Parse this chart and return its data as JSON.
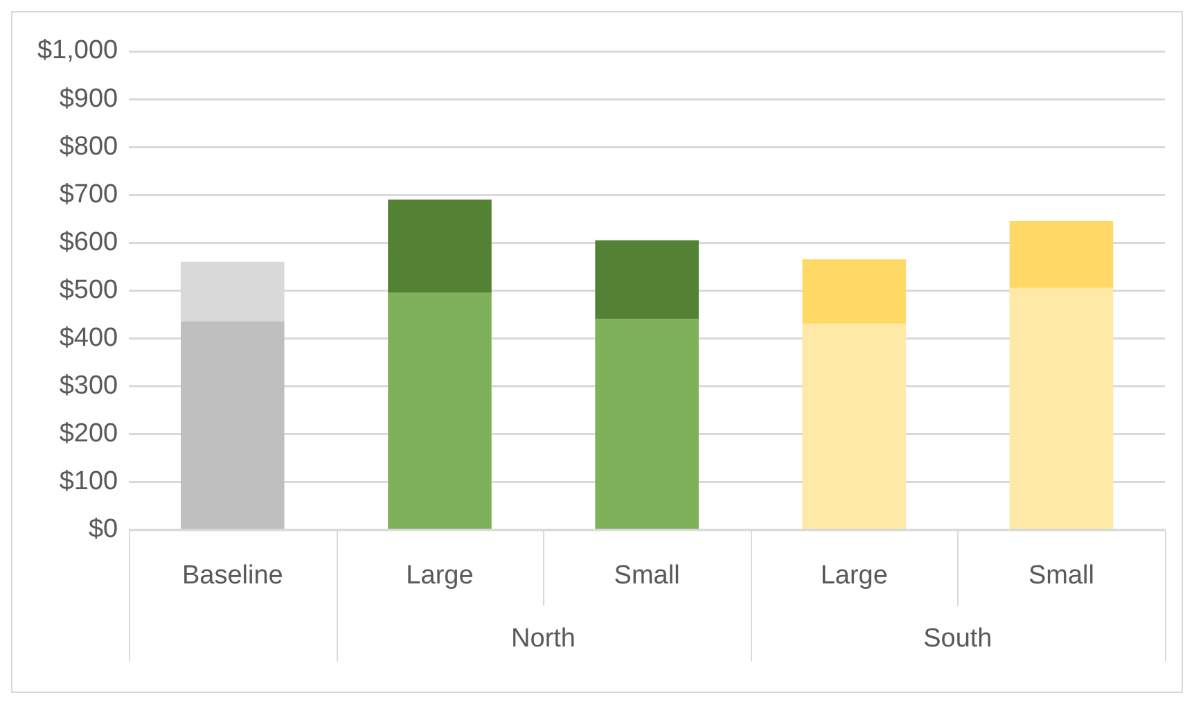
{
  "chart_data": {
    "type": "bar",
    "stacked": true,
    "categories": [
      "Baseline",
      "Large",
      "Small",
      "Large",
      "Small"
    ],
    "series": [
      {
        "colors": [
          "#bfbfbf",
          "#7fb05a",
          "#7fb05a",
          "#ffe9a6",
          "#ffe9a6"
        ],
        "values": [
          435,
          495,
          440,
          430,
          505
        ]
      },
      {
        "colors": [
          "#d9d9d9",
          "#548235",
          "#548235",
          "#ffd966",
          "#ffd966"
        ],
        "values": [
          125,
          195,
          165,
          135,
          140
        ]
      }
    ],
    "ylim": [
      0,
      1000
    ],
    "yticks": [
      {
        "value": 0,
        "label": "$0"
      },
      {
        "value": 100,
        "label": "$100"
      },
      {
        "value": 200,
        "label": "$200"
      },
      {
        "value": 300,
        "label": "$300"
      },
      {
        "value": 400,
        "label": "$400"
      },
      {
        "value": 500,
        "label": "$500"
      },
      {
        "value": 600,
        "label": "$600"
      },
      {
        "value": 700,
        "label": "$700"
      },
      {
        "value": 800,
        "label": "$800"
      },
      {
        "value": 900,
        "label": "$900"
      },
      {
        "value": 1000,
        "label": "$1,000"
      }
    ],
    "grid": "y",
    "legend": false,
    "annotations": [
      "North",
      "South"
    ]
  }
}
